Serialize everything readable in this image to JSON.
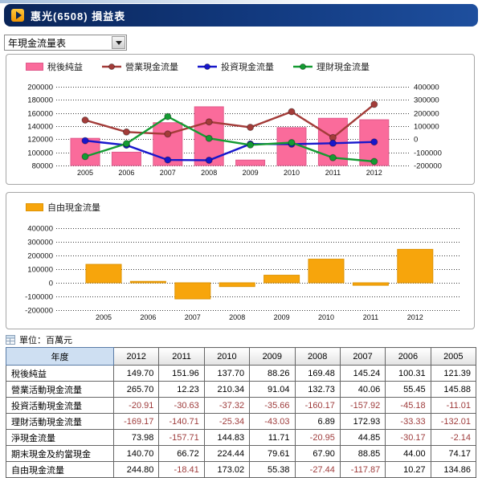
{
  "header": {
    "title": "惠光(6508) 損益表"
  },
  "controls": {
    "report_type_value": "年現金流量表"
  },
  "unit_note": "單位：百萬元",
  "chart_data": [
    {
      "type": "combo-bar-line",
      "title": "",
      "x": [
        "2005",
        "2006",
        "2007",
        "2008",
        "2009",
        "2010",
        "2011",
        "2012"
      ],
      "bar_series": {
        "name": "稅後純益",
        "values": [
          121390,
          100310,
          145240,
          169480,
          88260,
          137700,
          151960,
          149700
        ],
        "color": "#fa6b9b",
        "border": "#e05a8c",
        "axis": "left"
      },
      "line_series": [
        {
          "name": "營業現金流量",
          "values": [
            145880,
            55450,
            40060,
            132730,
            91040,
            210340,
            12230,
            265700
          ],
          "color": "#a33c39"
        },
        {
          "name": "投資現金流量",
          "values": [
            -11010,
            -45180,
            -157920,
            -160170,
            -35660,
            -37320,
            -30630,
            -20910
          ],
          "color": "#1717cc"
        },
        {
          "name": "理財現金流量",
          "values": [
            -132010,
            -33330,
            172930,
            6890,
            -43030,
            -25340,
            -140710,
            -169170
          ],
          "color": "#149b32"
        }
      ],
      "left_axis": {
        "min": 80000,
        "max": 200000,
        "step": 20000
      },
      "right_axis": {
        "min": -200000,
        "max": 400000,
        "step": 100000
      },
      "grid": "dotted",
      "legend_position": "top-left"
    },
    {
      "type": "bar",
      "title": "",
      "x": [
        "2005",
        "2006",
        "2007",
        "2008",
        "2009",
        "2010",
        "2011",
        "2012"
      ],
      "series": [
        {
          "name": "自由現金流量",
          "values": [
            134860,
            10270,
            -117870,
            -27440,
            55380,
            173020,
            -18410,
            244800
          ],
          "color": "#f7a50c",
          "border": "#de9404"
        }
      ],
      "left_axis": {
        "min": -200000,
        "max": 400000,
        "step": 100000
      },
      "grid": "dotted",
      "legend_position": "top-left"
    }
  ],
  "table": {
    "header": [
      "年度",
      "2012",
      "2011",
      "2010",
      "2009",
      "2008",
      "2007",
      "2006",
      "2005"
    ],
    "rows": [
      {
        "label": "稅後純益",
        "values": [
          "149.70",
          "151.96",
          "137.70",
          "88.26",
          "169.48",
          "145.24",
          "100.31",
          "121.39"
        ]
      },
      {
        "label": "營業活動現金流量",
        "values": [
          "265.70",
          "12.23",
          "210.34",
          "91.04",
          "132.73",
          "40.06",
          "55.45",
          "145.88"
        ]
      },
      {
        "label": "投資活動現金流量",
        "values": [
          "-20.91",
          "-30.63",
          "-37.32",
          "-35.66",
          "-160.17",
          "-157.92",
          "-45.18",
          "-11.01"
        ]
      },
      {
        "label": "理財活動現金流量",
        "values": [
          "-169.17",
          "-140.71",
          "-25.34",
          "-43.03",
          "6.89",
          "172.93",
          "-33.33",
          "-132.01"
        ]
      },
      {
        "label": "淨現金流量",
        "values": [
          "73.98",
          "-157.71",
          "144.83",
          "11.71",
          "-20.95",
          "44.85",
          "-30.17",
          "-2.14"
        ]
      },
      {
        "label": "期末現金及約當現金",
        "values": [
          "140.70",
          "66.72",
          "224.44",
          "79.61",
          "67.90",
          "88.85",
          "44.00",
          "74.17"
        ]
      },
      {
        "label": "自由現金流量",
        "values": [
          "244.80",
          "-18.41",
          "173.02",
          "55.38",
          "-27.44",
          "-117.87",
          "10.27",
          "134.86"
        ]
      }
    ],
    "colors": {
      "negative": "#9e3b3b",
      "header_bg": "#cedff2"
    }
  }
}
